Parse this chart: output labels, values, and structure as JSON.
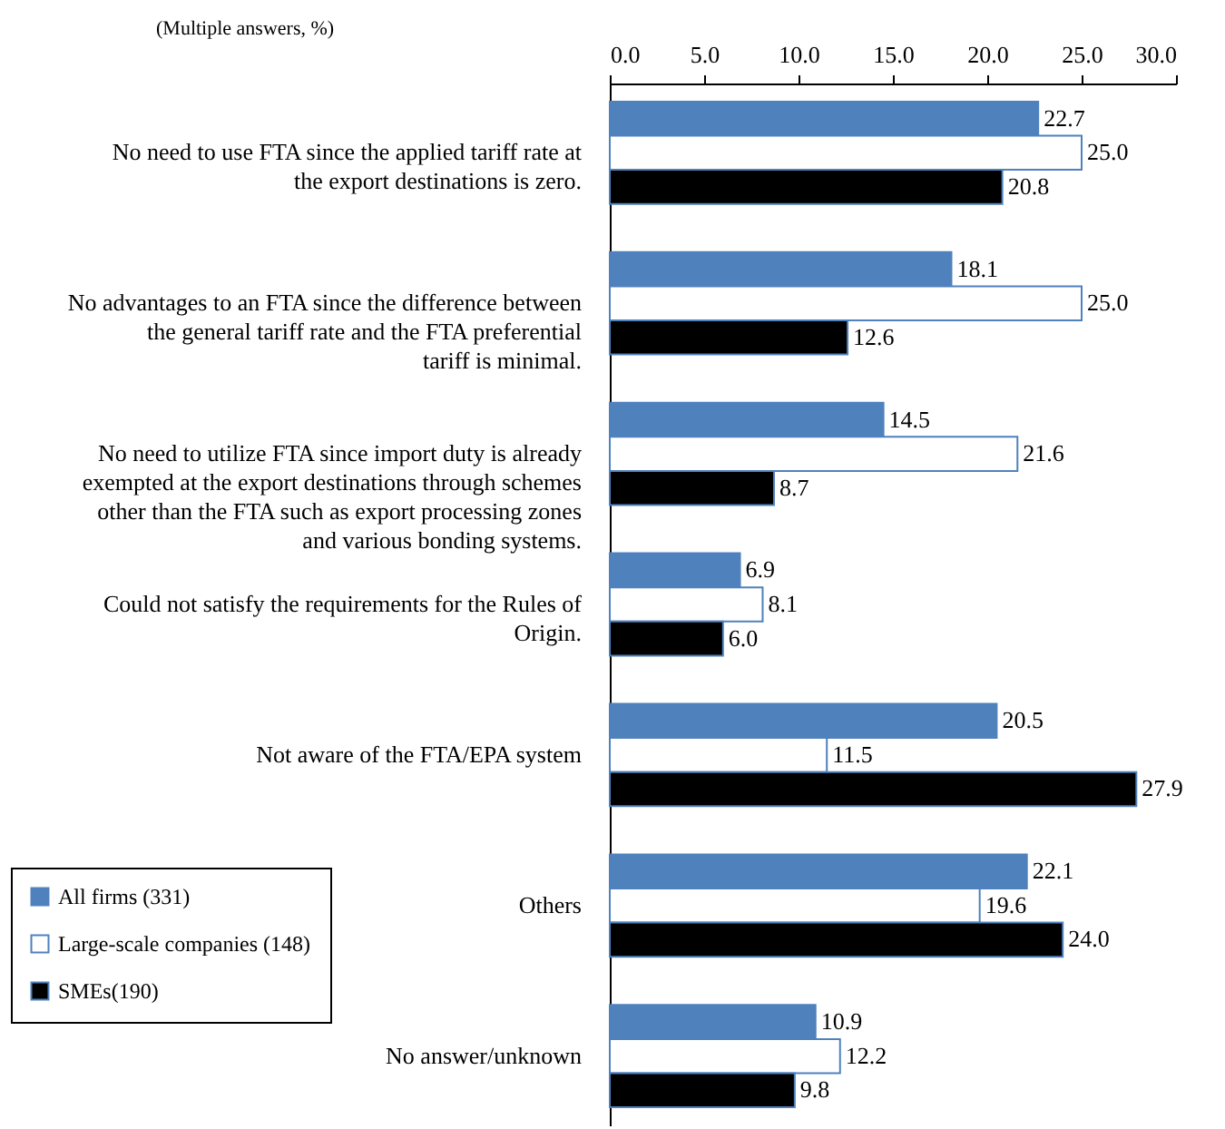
{
  "chart_data": {
    "type": "bar",
    "orientation": "horizontal",
    "annotations": [
      "(Multiple answers, %)"
    ],
    "categories": [
      "No need to use FTA since the applied tariff rate at the export destinations is zero.",
      "No advantages to an FTA since the difference between the general tariff rate and the FTA preferential tariff is minimal.",
      "No need to utilize FTA since import duty is already exempted at the export destinations through schemes other than the FTA such as export processing zones and various bonding systems.",
      "Could not satisfy the requirements for the Rules of Origin.",
      "Not aware of the FTA/EPA system",
      "Others",
      "No answer/unknown"
    ],
    "series": [
      {
        "name": "All firms (331)",
        "color": "#4f81bd",
        "values": [
          22.7,
          18.1,
          14.5,
          6.9,
          20.5,
          22.1,
          10.9
        ],
        "value_labels": [
          "22.7",
          "18.1",
          "14.5",
          "6.9",
          "20.5",
          "22.1",
          "10.9"
        ]
      },
      {
        "name": "Large-scale companies (148)",
        "color": "#ffffff",
        "values": [
          25.0,
          25.0,
          21.6,
          8.1,
          11.5,
          19.6,
          12.2
        ],
        "value_labels": [
          "25.0",
          "25.0",
          "21.6",
          "8.1",
          "11.5",
          "19.6",
          "12.2"
        ]
      },
      {
        "name": "SMEs(190)",
        "color": "#000000",
        "values": [
          20.8,
          12.6,
          8.7,
          6.0,
          27.9,
          24.0,
          9.8
        ],
        "value_labels": [
          "20.8",
          "12.6",
          "8.7",
          "6.0",
          "27.9",
          "24.0",
          "9.8"
        ]
      }
    ],
    "xlim": [
      0,
      30
    ],
    "xticks": [
      {
        "value": 0,
        "label": "0.0"
      },
      {
        "value": 5,
        "label": "5.0"
      },
      {
        "value": 10,
        "label": "10.0"
      },
      {
        "value": 15,
        "label": "15.0"
      },
      {
        "value": 20,
        "label": "20.0"
      },
      {
        "value": 25,
        "label": "25.0"
      },
      {
        "value": 30,
        "label": "30.0"
      }
    ],
    "grid": false,
    "legend": "bottom left"
  }
}
